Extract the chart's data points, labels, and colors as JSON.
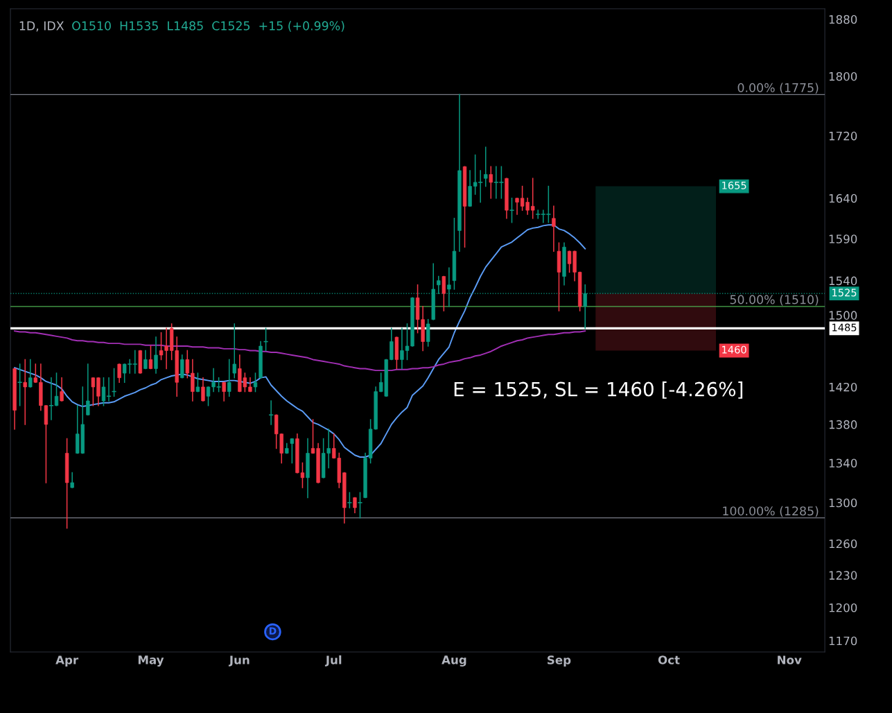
{
  "chart_data": {
    "type": "candlestick",
    "title": "1D, IDX",
    "subtitle": "O1510  H1535  L1485  C1525  +15 (+0.99%)",
    "categories": [
      null,
      null,
      null,
      null,
      null,
      null,
      null,
      null,
      null,
      null,
      "Apr",
      null,
      null,
      null,
      null,
      null,
      null,
      null,
      null,
      null,
      null,
      null,
      null,
      null,
      null,
      null,
      "May",
      null,
      null,
      null,
      null,
      null,
      null,
      null,
      null,
      null,
      null,
      null,
      null,
      null,
      null,
      null,
      null,
      "Jun",
      null,
      null,
      null,
      null,
      null,
      null,
      null,
      null,
      null,
      null,
      null,
      null,
      null,
      null,
      null,
      null,
      null,
      "Jul",
      null,
      null,
      null,
      null,
      null,
      null,
      null,
      null,
      null,
      null,
      null,
      null,
      null,
      null,
      null,
      null,
      null,
      null,
      null,
      null,
      null,
      null,
      "Aug",
      null,
      null,
      null,
      null,
      null,
      null,
      null,
      null,
      null,
      null,
      null,
      null,
      null,
      null,
      null,
      null,
      null,
      null,
      null,
      "Sep",
      null,
      null,
      null,
      null,
      null,
      null,
      null,
      null,
      null,
      null,
      null,
      null,
      null,
      null,
      null,
      null,
      null,
      null,
      null,
      null,
      "Oct",
      null,
      null,
      null,
      null,
      null,
      null,
      null,
      null,
      null,
      null,
      null,
      null,
      null,
      null,
      null,
      null,
      null,
      null,
      null,
      null,
      null,
      null,
      "Nov"
    ],
    "ohlc": [
      [
        1440,
        1440,
        1375,
        1395
      ],
      [
        1425,
        1445,
        1400,
        1425
      ],
      [
        1425,
        1450,
        1380,
        1420
      ],
      [
        1420,
        1450,
        1420,
        1430
      ],
      [
        1430,
        1445,
        1425,
        1425
      ],
      [
        1425,
        1445,
        1395,
        1400
      ],
      [
        1400,
        1400,
        1320,
        1380
      ],
      [
        1400,
        1430,
        1385,
        1400
      ],
      [
        1400,
        1435,
        1400,
        1410
      ],
      [
        1415,
        1430,
        1405,
        1405
      ],
      [
        1350,
        1365,
        1275,
        1320
      ],
      [
        1315,
        1330,
        1315,
        1320
      ],
      [
        1350,
        1400,
        1350,
        1370
      ],
      [
        1350,
        1420,
        1350,
        1380
      ],
      [
        1390,
        1445,
        1390,
        1405
      ],
      [
        1430,
        1430,
        1400,
        1420
      ],
      [
        1430,
        1430,
        1400,
        1410
      ],
      [
        1405,
        1430,
        1400,
        1420
      ],
      [
        1410,
        1430,
        1405,
        1410
      ],
      [
        1415,
        1440,
        1410,
        1415
      ],
      [
        1445,
        1445,
        1425,
        1430
      ],
      [
        1435,
        1445,
        1425,
        1445
      ],
      [
        1445,
        1450,
        1435,
        1445
      ],
      [
        1445,
        1460,
        1435,
        1445
      ],
      [
        1460,
        1460,
        1435,
        1435
      ],
      [
        1440,
        1460,
        1440,
        1450
      ],
      [
        1450,
        1465,
        1440,
        1440
      ],
      [
        1440,
        1475,
        1435,
        1455
      ],
      [
        1460,
        1480,
        1450,
        1455
      ],
      [
        1465,
        1485,
        1440,
        1460
      ],
      [
        1485,
        1490,
        1450,
        1460
      ],
      [
        1460,
        1475,
        1410,
        1425
      ],
      [
        1430,
        1455,
        1430,
        1450
      ],
      [
        1450,
        1460,
        1430,
        1435
      ],
      [
        1435,
        1450,
        1405,
        1415
      ],
      [
        1415,
        1435,
        1415,
        1420
      ],
      [
        1420,
        1430,
        1405,
        1405
      ],
      [
        1410,
        1420,
        1400,
        1420
      ],
      [
        1420,
        1440,
        1415,
        1425
      ],
      [
        1420,
        1430,
        1415,
        1420
      ],
      [
        1425,
        1425,
        1405,
        1415
      ],
      [
        1415,
        1450,
        1410,
        1425
      ],
      [
        1435,
        1490,
        1430,
        1445
      ],
      [
        1440,
        1455,
        1415,
        1415
      ],
      [
        1430,
        1435,
        1415,
        1420
      ],
      [
        1420,
        1430,
        1415,
        1415
      ],
      [
        1420,
        1435,
        1415,
        1425
      ],
      [
        1430,
        1470,
        1430,
        1465
      ],
      [
        1470,
        1485,
        1460,
        1470
      ],
      [
        1390,
        1405,
        1380,
        1390
      ],
      [
        1390,
        1390,
        1355,
        1370
      ],
      [
        1370,
        1370,
        1340,
        1350
      ],
      [
        1350,
        1360,
        1350,
        1355
      ],
      [
        1360,
        1365,
        1340,
        1365
      ],
      [
        1365,
        1370,
        1330,
        1330
      ],
      [
        1330,
        1340,
        1315,
        1325
      ],
      [
        1325,
        1365,
        1305,
        1350
      ],
      [
        1355,
        1385,
        1350,
        1350
      ],
      [
        1355,
        1360,
        1320,
        1320
      ],
      [
        1325,
        1365,
        1325,
        1350
      ],
      [
        1350,
        1375,
        1335,
        1355
      ],
      [
        1355,
        1370,
        1345,
        1345
      ],
      [
        1345,
        1350,
        1315,
        1320
      ],
      [
        1330,
        1330,
        1280,
        1295
      ],
      [
        1300,
        1310,
        1295,
        1300
      ],
      [
        1305,
        1305,
        1290,
        1295
      ],
      [
        1300,
        1310,
        1285,
        1300
      ],
      [
        1305,
        1350,
        1305,
        1345
      ],
      [
        1345,
        1385,
        1340,
        1375
      ],
      [
        1375,
        1420,
        1375,
        1415
      ],
      [
        1415,
        1435,
        1415,
        1425
      ],
      [
        1410,
        1450,
        1410,
        1450
      ],
      [
        1450,
        1485,
        1450,
        1470
      ],
      [
        1475,
        1475,
        1440,
        1450
      ],
      [
        1450,
        1485,
        1440,
        1460
      ],
      [
        1460,
        1490,
        1450,
        1465
      ],
      [
        1465,
        1520,
        1465,
        1520
      ],
      [
        1520,
        1535,
        1480,
        1495
      ],
      [
        1495,
        1510,
        1460,
        1470
      ],
      [
        1470,
        1495,
        1465,
        1490
      ],
      [
        1495,
        1560,
        1495,
        1530
      ],
      [
        1535,
        1545,
        1525,
        1540
      ],
      [
        1545,
        1545,
        1505,
        1525
      ],
      [
        1530,
        1555,
        1510,
        1535
      ],
      [
        1540,
        1615,
        1530,
        1575
      ],
      [
        1600,
        1775,
        1575,
        1675
      ],
      [
        1680,
        1680,
        1580,
        1630
      ],
      [
        1630,
        1675,
        1630,
        1655
      ],
      [
        1655,
        1695,
        1645,
        1660
      ],
      [
        1660,
        1675,
        1635,
        1660
      ],
      [
        1665,
        1705,
        1655,
        1670
      ],
      [
        1670,
        1680,
        1640,
        1660
      ],
      [
        1660,
        1680,
        1640,
        1660
      ],
      [
        1660,
        1680,
        1640,
        1660
      ],
      [
        1665,
        1665,
        1615,
        1625
      ],
      [
        1625,
        1640,
        1610,
        1625
      ],
      [
        1640,
        1640,
        1620,
        1635
      ],
      [
        1640,
        1655,
        1625,
        1630
      ],
      [
        1635,
        1640,
        1620,
        1625
      ],
      [
        1630,
        1665,
        1615,
        1625
      ],
      [
        1620,
        1625,
        1615,
        1620
      ],
      [
        1620,
        1625,
        1610,
        1620
      ],
      [
        1620,
        1655,
        1610,
        1620
      ],
      [
        1615,
        1630,
        1575,
        1605
      ],
      [
        1575,
        1585,
        1505,
        1550
      ],
      [
        1545,
        1585,
        1535,
        1580
      ],
      [
        1575,
        1575,
        1550,
        1560
      ],
      [
        1575,
        1575,
        1540,
        1550
      ],
      [
        1550,
        1550,
        1505,
        1510
      ],
      [
        1510,
        1535,
        1485,
        1525
      ],
      null,
      null,
      null,
      null,
      null,
      null,
      null,
      null,
      null,
      null,
      null,
      null,
      null,
      null,
      null,
      null,
      null,
      null,
      null,
      null,
      null,
      null,
      null,
      null,
      null,
      null,
      null,
      null,
      null,
      null,
      null,
      null,
      null,
      null,
      null,
      null,
      null,
      null,
      null
    ],
    "colors": [
      "#f23645",
      "#089981",
      "#f23645",
      "#089981",
      "#f23645",
      "#f23645",
      "#f23645",
      "#089981",
      "#089981",
      "#f23645",
      "#f23645",
      "#089981",
      "#089981",
      "#089981",
      "#089981",
      "#f23645",
      "#f23645",
      "#089981",
      "#089981",
      "#089981",
      "#f23645",
      "#089981",
      "#089981",
      "#089981",
      "#f23645",
      "#089981",
      "#f23645",
      "#089981",
      "#f23645",
      "#f23645",
      "#f23645",
      "#f23645",
      "#089981",
      "#f23645",
      "#f23645",
      "#089981",
      "#f23645",
      "#089981",
      "#089981",
      "#089981",
      "#f23645",
      "#089981",
      "#089981",
      "#f23645",
      "#f23645",
      "#f23645",
      "#089981",
      "#089981",
      "#089981",
      "#089981",
      "#f23645",
      "#f23645",
      "#089981",
      "#089981",
      "#f23645",
      "#f23645",
      "#089981",
      "#f23645",
      "#f23645",
      "#089981",
      "#089981",
      "#f23645",
      "#f23645",
      "#f23645",
      "#089981",
      "#f23645",
      "#089981",
      "#089981",
      "#089981",
      "#089981",
      "#089981",
      "#089981",
      "#089981",
      "#f23645",
      "#089981",
      "#089981",
      "#089981",
      "#f23645",
      "#f23645",
      "#089981",
      "#089981",
      "#089981",
      "#f23645",
      "#089981",
      "#089981",
      "#089981",
      "#f23645",
      "#089981",
      "#089981",
      "#089981",
      "#089981",
      "#f23645",
      "#089981",
      "#089981",
      "#f23645",
      "#089981",
      "#f23645",
      "#f23645",
      "#f23645",
      "#f23645",
      "#089981",
      "#089981",
      "#089981",
      "#f23645",
      "#f23645",
      "#089981",
      "#f23645",
      "#f23645",
      "#f23645",
      "#089981",
      null,
      null,
      null,
      null,
      null,
      null,
      null,
      null,
      null,
      null,
      null,
      null,
      null,
      null,
      null,
      null,
      null,
      null,
      null,
      null,
      null,
      null,
      null,
      null,
      null,
      null,
      null,
      null,
      null,
      null,
      null,
      null,
      null,
      null,
      null,
      null,
      null,
      null,
      null
    ],
    "series": [
      {
        "type": "line",
        "color": "#5b9cf6",
        "values": [
          1441,
          1439,
          1437,
          1435,
          1433,
          1430,
          1426,
          1424,
          1422,
          1418,
          1410,
          1404,
          1401,
          1399,
          1400,
          1401,
          1402,
          1403,
          1403,
          1404,
          1407,
          1410,
          1412,
          1414,
          1417,
          1419,
          1422,
          1424,
          1428,
          1430,
          1432,
          1433,
          1434,
          1433,
          1431,
          1429,
          1428,
          1427,
          1426,
          1426,
          1426,
          1427,
          1427,
          1426,
          1425,
          1424,
          1426,
          1430,
          1431,
          1422,
          1416,
          1410,
          1405,
          1401,
          1397,
          1394,
          1388,
          1382,
          1380,
          1377,
          1374,
          1370,
          1364,
          1356,
          1352,
          1348,
          1346,
          1346,
          1348,
          1354,
          1360,
          1370,
          1380,
          1387,
          1393,
          1398,
          1411,
          1416,
          1421,
          1430,
          1440,
          1450,
          1457,
          1464,
          1480,
          1493,
          1505,
          1520,
          1532,
          1545,
          1556,
          1564,
          1572,
          1580,
          1583,
          1586,
          1591,
          1596,
          1601,
          1603,
          1604,
          1606,
          1607,
          1607,
          1602,
          1600,
          1596,
          1591,
          1585,
          1578,
          null,
          null,
          null,
          null,
          null,
          null,
          null,
          null,
          null,
          null,
          null,
          null,
          null,
          null,
          null,
          null,
          null,
          null,
          null,
          null,
          null,
          null,
          null,
          null,
          null,
          null,
          null,
          null,
          null,
          null,
          null,
          null,
          null,
          null,
          null,
          null,
          null,
          null,
          null
        ]
      },
      {
        "type": "line",
        "color": "#a22fb5",
        "values": [
          1482,
          1481,
          1481,
          1480,
          1480,
          1479,
          1478,
          1477,
          1476,
          1475,
          1474,
          1472,
          1471,
          1471,
          1470,
          1470,
          1469,
          1469,
          1468,
          1468,
          1468,
          1467,
          1467,
          1467,
          1467,
          1466,
          1466,
          1466,
          1466,
          1465,
          1465,
          1465,
          1465,
          1465,
          1464,
          1464,
          1464,
          1463,
          1463,
          1463,
          1462,
          1462,
          1462,
          1461,
          1461,
          1460,
          1460,
          1459,
          1459,
          1458,
          1458,
          1457,
          1456,
          1455,
          1454,
          1453,
          1452,
          1450,
          1449,
          1448,
          1447,
          1446,
          1445,
          1443,
          1442,
          1441,
          1440,
          1440,
          1439,
          1438,
          1438,
          1438,
          1438,
          1439,
          1439,
          1439,
          1440,
          1440,
          1441,
          1441,
          1442,
          1444,
          1445,
          1447,
          1448,
          1449,
          1451,
          1452,
          1454,
          1455,
          1457,
          1459,
          1462,
          1465,
          1467,
          1469,
          1471,
          1472,
          1474,
          1475,
          1476,
          1477,
          1478,
          1478,
          1479,
          1480,
          1480,
          1481,
          1481,
          1482,
          null,
          null,
          null,
          null,
          null,
          null,
          null,
          null,
          null,
          null,
          null,
          null,
          null,
          null,
          null,
          null,
          null,
          null,
          null,
          null,
          null,
          null,
          null,
          null,
          null,
          null,
          null,
          null,
          null,
          null,
          null,
          null,
          null,
          null,
          null,
          null,
          null,
          null,
          null
        ]
      }
    ],
    "ref_lines": [
      {
        "axis": "y",
        "value": 1775,
        "color": "#787b86",
        "line_style": "solid"
      },
      {
        "axis": "y",
        "value": 1510,
        "color": "#4caf50",
        "line_style": "solid"
      },
      {
        "axis": "y",
        "value": 1285,
        "color": "#787b86",
        "line_style": "solid"
      },
      {
        "axis": "y",
        "value": 1525,
        "label": "1525",
        "color": "#089981",
        "line_style": "dotted"
      },
      {
        "axis": "y",
        "value": 1485,
        "label": "1485",
        "color": "#ffffff",
        "line_style": "solid"
      }
    ],
    "bands": [
      {
        "axis": "y",
        "from": 1525,
        "to": 1655,
        "label": "1655",
        "color": "#089981"
      },
      {
        "axis": "y",
        "from": 1525,
        "to": 1460,
        "label": "1460",
        "color": "#f23645"
      }
    ],
    "annotations": [
      {
        "text": "0.00% (1775)",
        "y": 1775
      },
      {
        "text": "50.00% (1510)",
        "y": 1510
      },
      {
        "text": "100.00% (1285)",
        "y": 1285
      },
      {
        "text": "D",
        "y": 1178
      },
      "E = 1525, SL = 1460 [-4.26%]"
    ],
    "log": "y",
    "ylim": [
      1160,
      1895
    ],
    "yticks": [
      1170,
      1200,
      1230,
      1260,
      1300,
      1340,
      1380,
      1420,
      1500,
      1540,
      1590,
      1640,
      1720,
      1800,
      1880
    ],
    "grid": false,
    "legend": false
  }
}
